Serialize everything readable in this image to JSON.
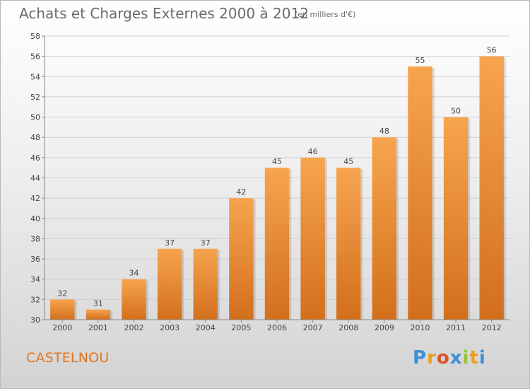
{
  "chart_data": {
    "type": "bar",
    "title": "Achats et Charges Externes 2000 à 2012",
    "unit_note": "(en milliers d'€)",
    "xlabel": "",
    "ylabel": "",
    "categories": [
      "2000",
      "2001",
      "2002",
      "2003",
      "2004",
      "2005",
      "2006",
      "2007",
      "2008",
      "2009",
      "2010",
      "2011",
      "2012"
    ],
    "values": [
      32,
      31,
      34,
      37,
      37,
      42,
      45,
      46,
      45,
      48,
      55,
      50,
      56
    ],
    "ylim": [
      30,
      58
    ],
    "yticks": [
      30,
      32,
      34,
      36,
      38,
      40,
      42,
      44,
      46,
      48,
      50,
      52,
      54,
      56,
      58
    ],
    "grid": true,
    "bar_color_top": "#f7a44e",
    "bar_color_bottom": "#d26f1c"
  },
  "commune": "CASTELNOU",
  "logo": {
    "letters": [
      "P",
      "r",
      "o",
      "x",
      "i",
      "t",
      "i"
    ],
    "colors": [
      "#3d8fd6",
      "#e8a21a",
      "#e0522a",
      "#3d8fd6",
      "#9ac43b",
      "#e8a21a",
      "#3d8fd6"
    ]
  }
}
